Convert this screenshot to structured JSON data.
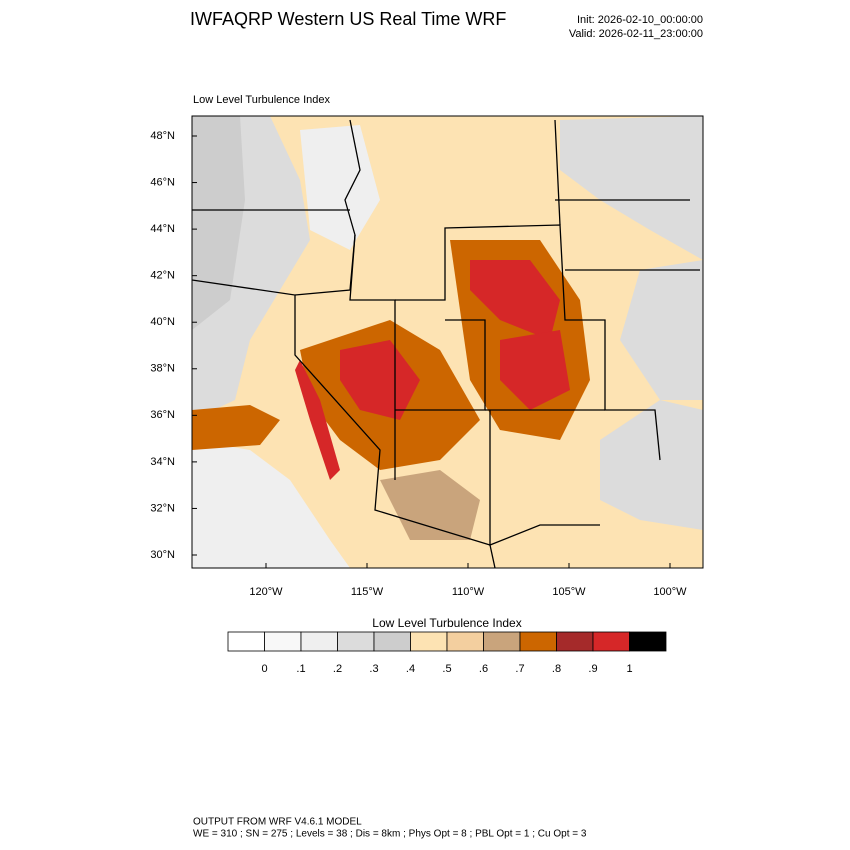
{
  "header": {
    "title": "IWFAQRP Western US Real Time WRF",
    "init": "Init: 2026-02-10_00:00:00",
    "valid": "Valid: 2026-02-11_23:00:00"
  },
  "map": {
    "field_title": "Low Level Turbulence Index",
    "lat_labels": [
      "48°N",
      "46°N",
      "44°N",
      "42°N",
      "40°N",
      "38°N",
      "36°N",
      "34°N",
      "32°N",
      "30°N"
    ],
    "lon_labels": [
      "120°W",
      "115°W",
      "110°W",
      "105°W",
      "100°W"
    ]
  },
  "colorbar": {
    "title": "Low Level Turbulence Index",
    "labels": [
      "0",
      ".1",
      ".2",
      ".3",
      ".4",
      ".5",
      ".6",
      ".7",
      ".8",
      ".9",
      "1"
    ],
    "colors": [
      "#ffffff",
      "#f8f8f8",
      "#efefef",
      "#dcdcdc",
      "#cdcdcd",
      "#fde3b3",
      "#f3cf9f",
      "#c9a47c",
      "#cc6600",
      "#a52a2a",
      "#d62728",
      "#000000"
    ]
  },
  "footer": {
    "line1": "OUTPUT FROM WRF V4.6.1 MODEL",
    "line2": "WE = 310 ; SN = 275 ; Levels = 38 ; Dis = 8km ; Phys Opt = 8 ; PBL Opt = 1 ; Cu Opt = 3"
  }
}
